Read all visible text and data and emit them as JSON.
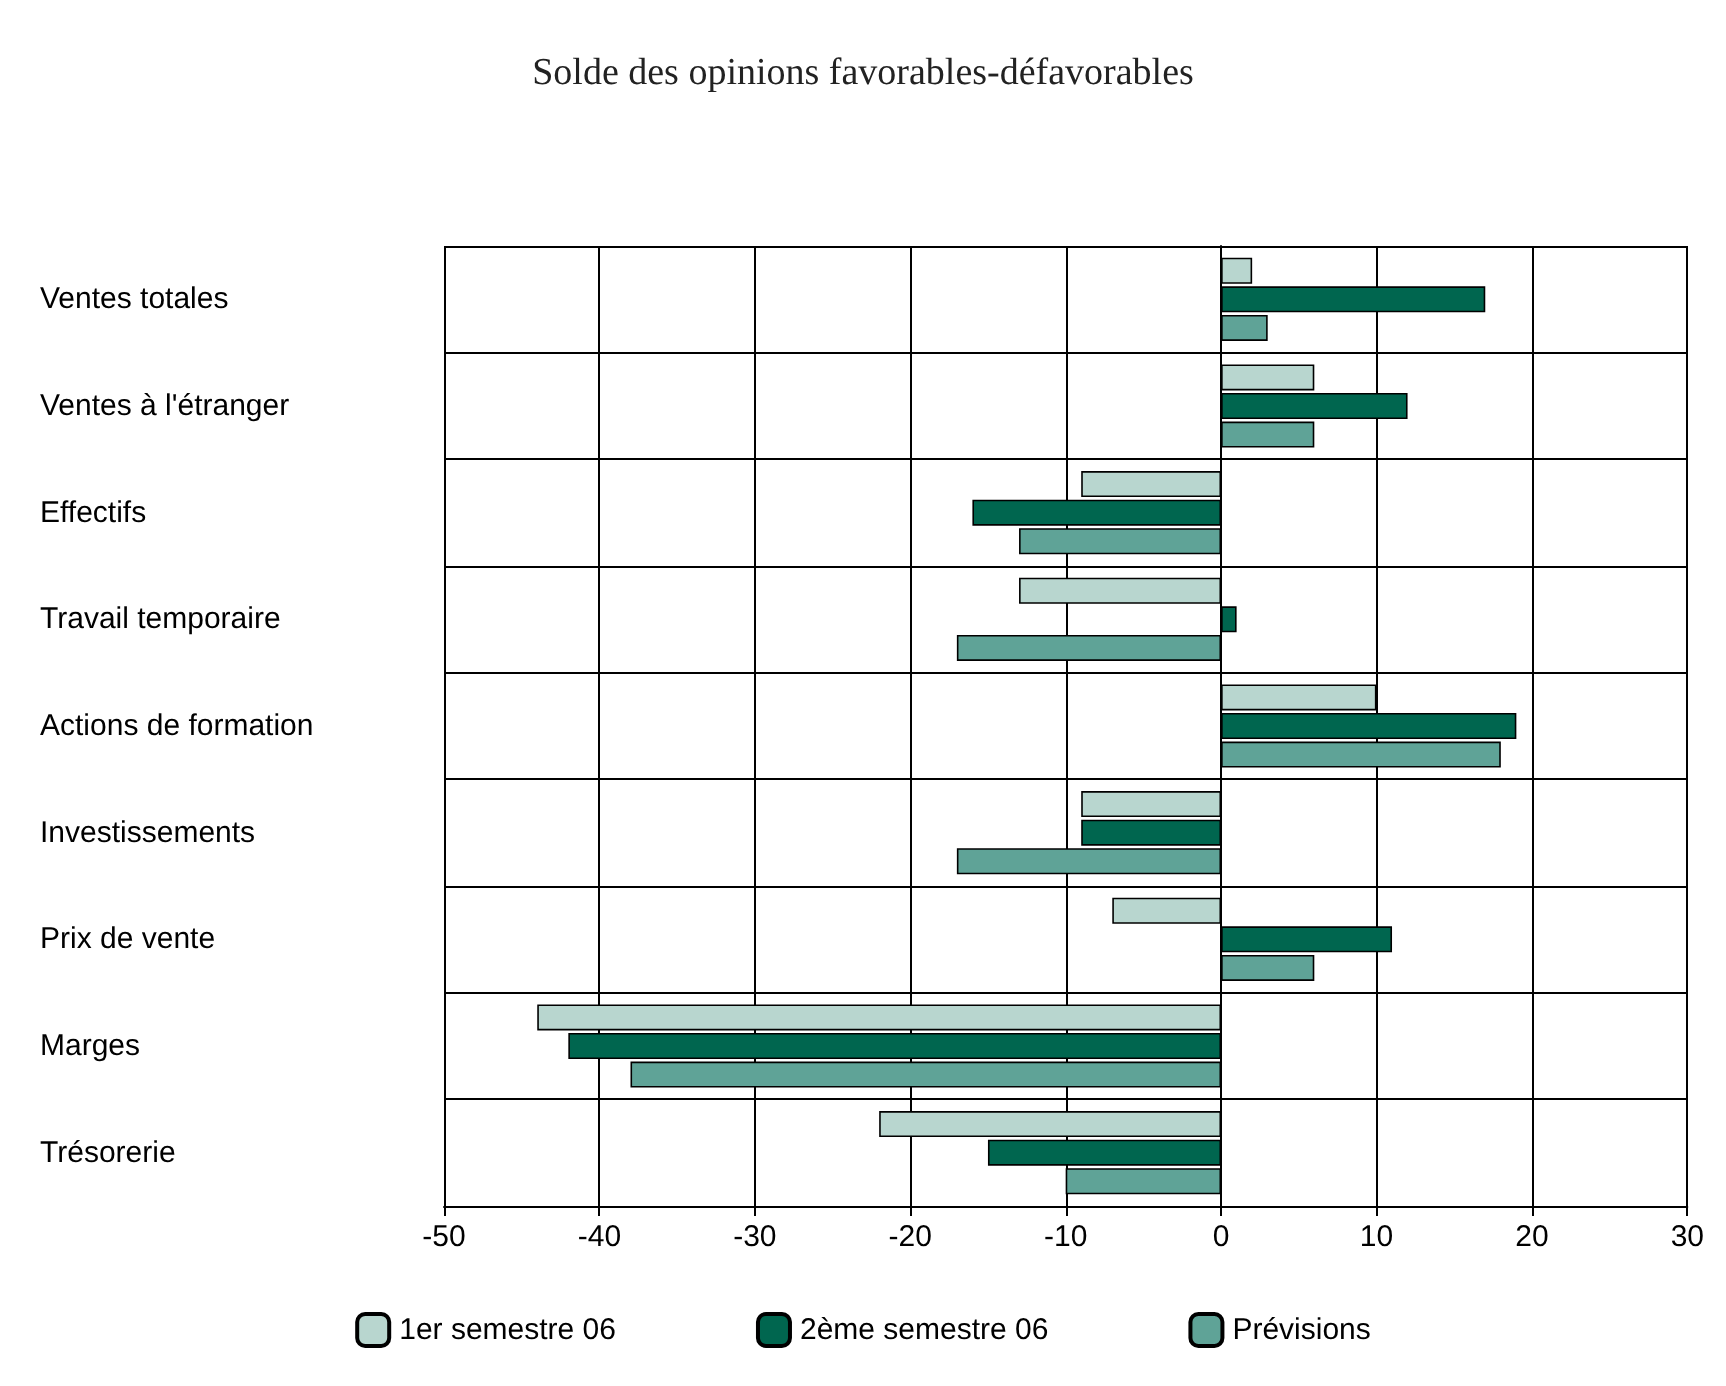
{
  "chart_data": {
    "type": "bar",
    "orientation": "horizontal",
    "title": "Solde des opinions favorables-défavorables",
    "categories": [
      "Ventes totales",
      "Ventes à l'étranger",
      "Effectifs",
      "Travail temporaire",
      "Actions de formation",
      "Investissements",
      "Prix de vente",
      "Marges",
      "Trésorerie"
    ],
    "series": [
      {
        "name": "1er semestre 06",
        "color": "#b8d6cf",
        "values": [
          2,
          6,
          -9,
          -13,
          10,
          -9,
          -7,
          -44,
          -22
        ]
      },
      {
        "name": "2ème semestre 06",
        "color": "#00664f",
        "values": [
          17,
          12,
          -16,
          1,
          19,
          -9,
          11,
          -42,
          -15
        ]
      },
      {
        "name": "Prévisions",
        "color": "#5fa397",
        "values": [
          3,
          6,
          -13,
          -17,
          18,
          -17,
          6,
          -38,
          -10
        ]
      }
    ],
    "xlim": [
      -50,
      30
    ],
    "xticks": [
      -50,
      -40,
      -30,
      -20,
      -10,
      0,
      10,
      20,
      30
    ],
    "grid": true,
    "legend": "bottom"
  }
}
